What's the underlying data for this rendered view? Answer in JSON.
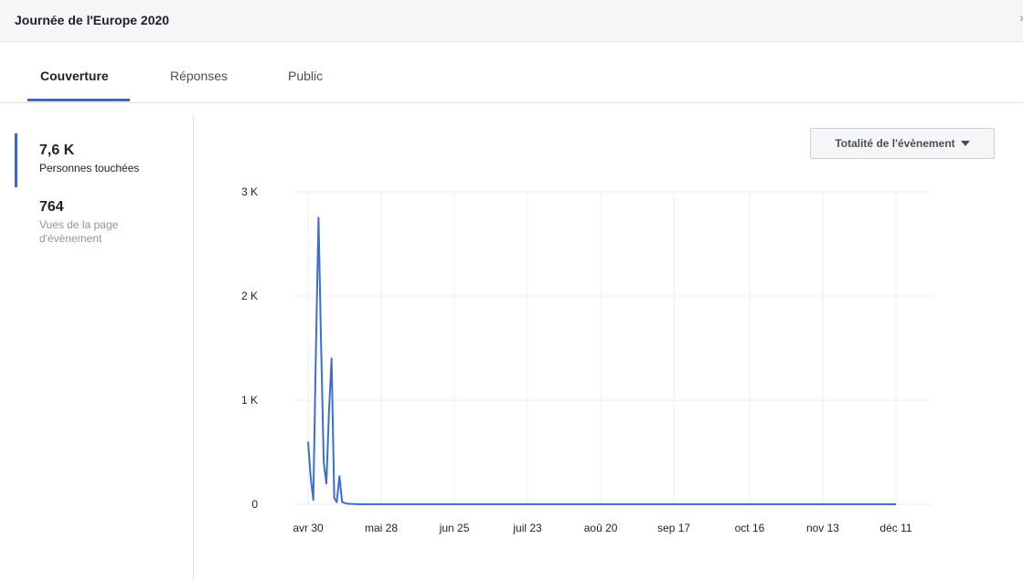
{
  "window": {
    "title": "Journée de l'Europe 2020",
    "close_glyph": "×"
  },
  "tabs": [
    {
      "label": "Couverture",
      "active": true
    },
    {
      "label": "Réponses",
      "active": false
    },
    {
      "label": "Public",
      "active": false
    }
  ],
  "metrics": [
    {
      "value": "7,6 K",
      "label": "Personnes touchées",
      "selected": true
    },
    {
      "value": "764",
      "label": "Vues de la page d'évènement",
      "selected": false
    }
  ],
  "range_selector": {
    "label": "Totalité de l'évènement"
  },
  "colors": {
    "accent": "#4267b2",
    "line": "#3b6fd6",
    "grid": "#ebedf0"
  },
  "chart_data": {
    "type": "line",
    "title": "",
    "xlabel": "",
    "ylabel": "",
    "ylim": [
      0,
      3000
    ],
    "y_ticks": [
      {
        "value": 0,
        "label": "0"
      },
      {
        "value": 1000,
        "label": "1 K"
      },
      {
        "value": 2000,
        "label": "2 K"
      },
      {
        "value": 3000,
        "label": "3 K"
      }
    ],
    "x_ticks": [
      {
        "date": "2020-04-30",
        "label": "avr 30"
      },
      {
        "date": "2020-05-28",
        "label": "mai 28"
      },
      {
        "date": "2020-06-25",
        "label": "jun 25"
      },
      {
        "date": "2020-07-23",
        "label": "juil 23"
      },
      {
        "date": "2020-08-20",
        "label": "aoû 20"
      },
      {
        "date": "2020-09-17",
        "label": "sep 17"
      },
      {
        "date": "2020-10-16",
        "label": "oct 16"
      },
      {
        "date": "2020-11-13",
        "label": "nov 13"
      },
      {
        "date": "2020-12-11",
        "label": "déc 11"
      }
    ],
    "xlim": [
      "2020-04-30",
      "2020-12-11"
    ],
    "series": [
      {
        "points": [
          {
            "x": "2020-04-30",
            "y": 600
          },
          {
            "x": "2020-05-01",
            "y": 250
          },
          {
            "x": "2020-05-02",
            "y": 40
          },
          {
            "x": "2020-05-03",
            "y": 1500
          },
          {
            "x": "2020-05-04",
            "y": 2750
          },
          {
            "x": "2020-05-05",
            "y": 1500
          },
          {
            "x": "2020-05-06",
            "y": 400
          },
          {
            "x": "2020-05-07",
            "y": 200
          },
          {
            "x": "2020-05-08",
            "y": 900
          },
          {
            "x": "2020-05-09",
            "y": 1400
          },
          {
            "x": "2020-05-10",
            "y": 60
          },
          {
            "x": "2020-05-11",
            "y": 20
          },
          {
            "x": "2020-05-12",
            "y": 270
          },
          {
            "x": "2020-05-13",
            "y": 20
          },
          {
            "x": "2020-05-15",
            "y": 5
          },
          {
            "x": "2020-05-20",
            "y": 0
          },
          {
            "x": "2020-06-01",
            "y": 0
          },
          {
            "x": "2020-07-01",
            "y": 0
          },
          {
            "x": "2020-08-01",
            "y": 0
          },
          {
            "x": "2020-09-01",
            "y": 0
          },
          {
            "x": "2020-10-01",
            "y": 0
          },
          {
            "x": "2020-11-01",
            "y": 0
          },
          {
            "x": "2020-12-11",
            "y": 0
          }
        ]
      }
    ]
  }
}
